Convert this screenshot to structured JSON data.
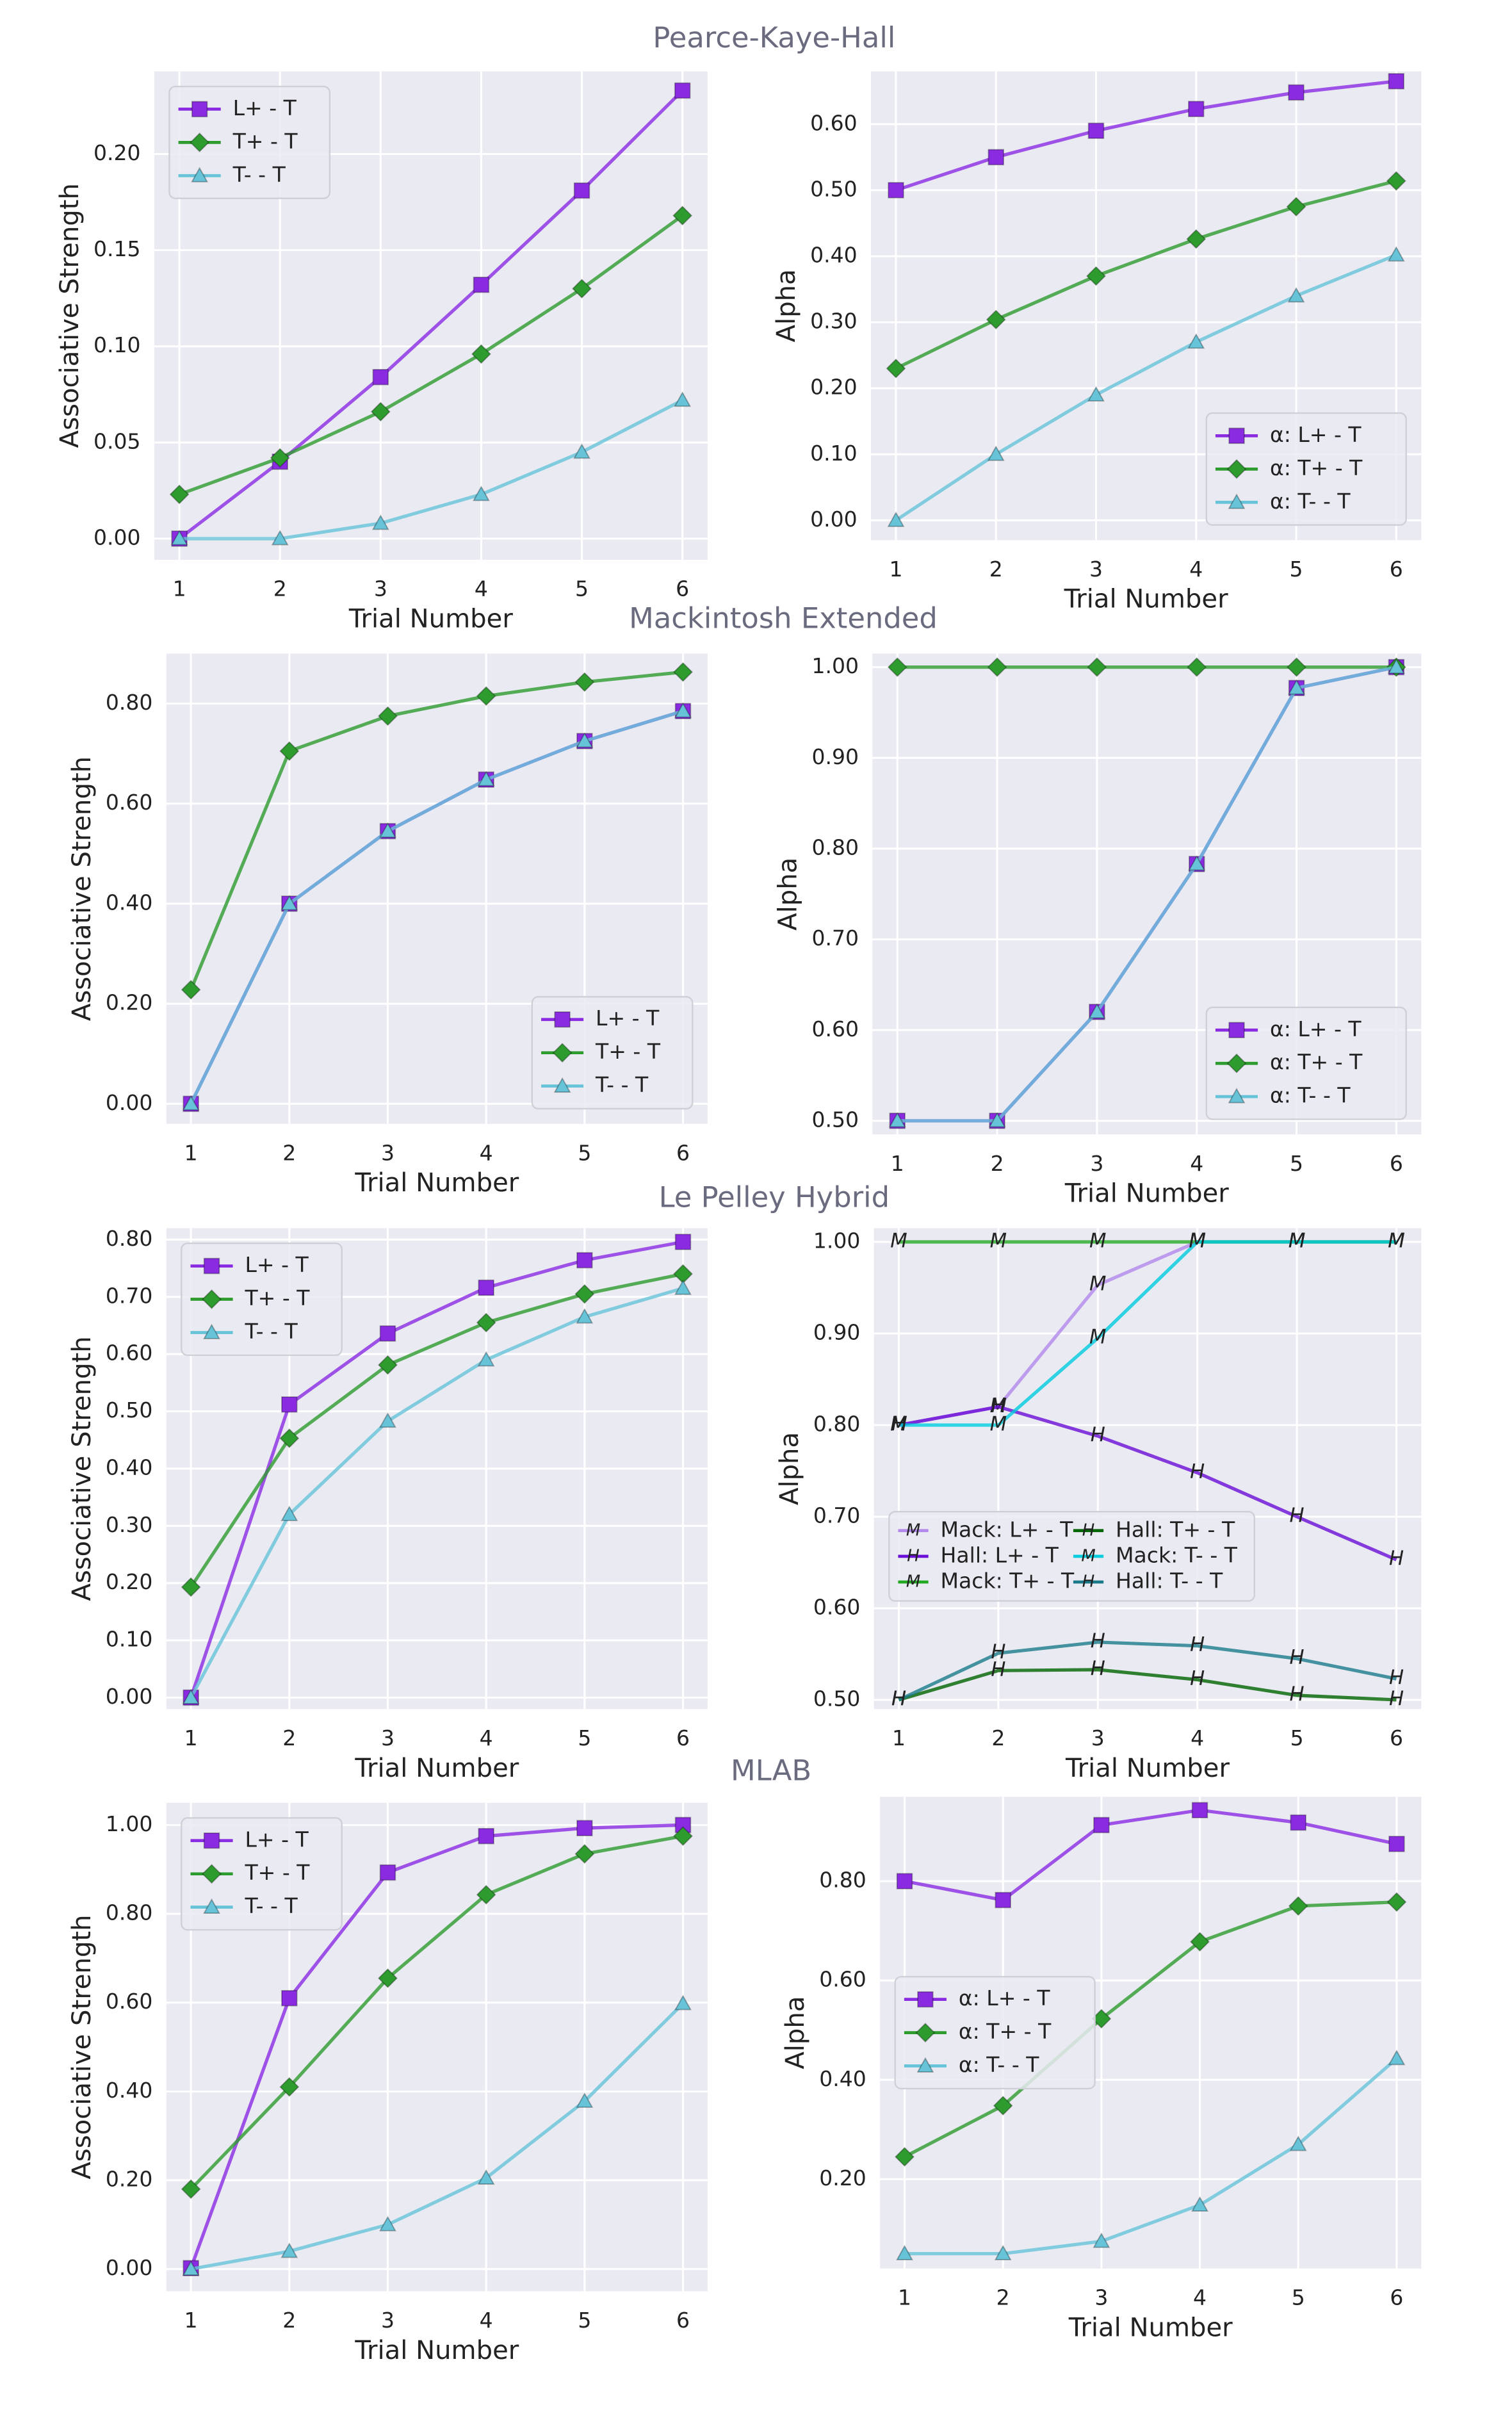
{
  "section_titles": [
    "Pearce-Kaye-Hall",
    "Mackintosh Extended",
    "Le Pelley Hybrid",
    "MLAB"
  ],
  "chart_data": [
    {
      "type": "line",
      "xlabel": "Trial Number",
      "ylabel": "Associative Strength",
      "x": [
        1,
        2,
        3,
        4,
        5,
        6
      ],
      "xlim": [
        0.75,
        6.25
      ],
      "xticks": [
        1,
        2,
        3,
        4,
        5,
        6
      ],
      "ylim": [
        -0.011,
        0.243
      ],
      "yticks": [
        {
          "value": 0,
          "label": "0.00"
        },
        {
          "value": 0.05,
          "label": "0.05"
        },
        {
          "value": 0.1,
          "label": "0.10"
        },
        {
          "value": 0.15,
          "label": "0.15"
        },
        {
          "value": 0.2,
          "label": "0.20"
        }
      ],
      "grid": true,
      "legend": "upper left",
      "series": [
        {
          "name": "L+ - T",
          "color": "#8a2be2",
          "marker": "s",
          "values": [
            0,
            0.04,
            0.084,
            0.132,
            0.181,
            0.233
          ]
        },
        {
          "name": "T+ - T",
          "color": "#2e9b2e",
          "marker": "D",
          "values": [
            0.023,
            0.042,
            0.066,
            0.096,
            0.13,
            0.168
          ]
        },
        {
          "name": "T- - T",
          "color": "#66c3d8",
          "marker": "^",
          "values": [
            0,
            0,
            0.008,
            0.023,
            0.045,
            0.072
          ]
        }
      ]
    },
    {
      "type": "line",
      "xlabel": "Trial Number",
      "ylabel": "Alpha",
      "x": [
        1,
        2,
        3,
        4,
        5,
        6
      ],
      "xlim": [
        0.75,
        6.25
      ],
      "xticks": [
        1,
        2,
        3,
        4,
        5,
        6
      ],
      "ylim": [
        -0.03,
        0.68
      ],
      "yticks": [
        {
          "value": 0,
          "label": "0.00"
        },
        {
          "value": 0.1,
          "label": "0.10"
        },
        {
          "value": 0.2,
          "label": "0.20"
        },
        {
          "value": 0.3,
          "label": "0.30"
        },
        {
          "value": 0.4,
          "label": "0.40"
        },
        {
          "value": 0.5,
          "label": "0.50"
        },
        {
          "value": 0.6,
          "label": "0.60"
        }
      ],
      "grid": true,
      "legend": "lower right",
      "series": [
        {
          "name": "α: L+ - T",
          "color": "#8a2be2",
          "marker": "s",
          "values": [
            0.5,
            0.55,
            0.59,
            0.623,
            0.648,
            0.665
          ]
        },
        {
          "name": "α: T+ - T",
          "color": "#2e9b2e",
          "marker": "D",
          "values": [
            0.23,
            0.304,
            0.37,
            0.426,
            0.475,
            0.514
          ]
        },
        {
          "name": "α: T- - T",
          "color": "#66c3d8",
          "marker": "^",
          "values": [
            0,
            0.1,
            0.19,
            0.27,
            0.34,
            0.402
          ]
        }
      ]
    },
    {
      "type": "line",
      "xlabel": "Trial Number",
      "ylabel": "Associative Strength",
      "x": [
        1,
        2,
        3,
        4,
        5,
        6
      ],
      "xlim": [
        0.75,
        6.25
      ],
      "xticks": [
        1,
        2,
        3,
        4,
        5,
        6
      ],
      "ylim": [
        -0.04,
        0.9
      ],
      "yticks": [
        {
          "value": 0,
          "label": "0.00"
        },
        {
          "value": 0.2,
          "label": "0.20"
        },
        {
          "value": 0.4,
          "label": "0.40"
        },
        {
          "value": 0.6,
          "label": "0.60"
        },
        {
          "value": 0.8,
          "label": "0.80"
        }
      ],
      "grid": true,
      "legend": "lower right",
      "series": [
        {
          "name": "L+ - T",
          "color": "#8a2be2",
          "marker": "s",
          "values": [
            0,
            0.4,
            0.545,
            0.648,
            0.725,
            0.785
          ]
        },
        {
          "name": "T+ - T",
          "color": "#2e9b2e",
          "marker": "D",
          "values": [
            0.228,
            0.705,
            0.775,
            0.815,
            0.843,
            0.863
          ]
        },
        {
          "name": "T- - T",
          "color": "#66c3d8",
          "marker": "^",
          "values": [
            0,
            0.4,
            0.545,
            0.648,
            0.725,
            0.785
          ]
        }
      ]
    },
    {
      "type": "line",
      "xlabel": "Trial Number",
      "ylabel": "Alpha",
      "x": [
        1,
        2,
        3,
        4,
        5,
        6
      ],
      "xlim": [
        0.75,
        6.25
      ],
      "xticks": [
        1,
        2,
        3,
        4,
        5,
        6
      ],
      "ylim": [
        0.485,
        1.015
      ],
      "yticks": [
        {
          "value": 0.5,
          "label": "0.50"
        },
        {
          "value": 0.6,
          "label": "0.60"
        },
        {
          "value": 0.7,
          "label": "0.70"
        },
        {
          "value": 0.8,
          "label": "0.80"
        },
        {
          "value": 0.9,
          "label": "0.90"
        },
        {
          "value": 1,
          "label": "1.00"
        }
      ],
      "grid": true,
      "legend": "lower right",
      "series": [
        {
          "name": "α: L+ - T",
          "color": "#8a2be2",
          "marker": "s",
          "values": [
            0.5,
            0.5,
            0.62,
            0.783,
            0.977,
            1
          ]
        },
        {
          "name": "α: T+ - T",
          "color": "#2e9b2e",
          "marker": "D",
          "values": [
            1,
            1,
            1,
            1,
            1,
            1
          ]
        },
        {
          "name": "α: T- - T",
          "color": "#66c3d8",
          "marker": "^",
          "values": [
            0.5,
            0.5,
            0.62,
            0.783,
            0.977,
            1
          ]
        }
      ]
    },
    {
      "type": "line",
      "xlabel": "Trial Number",
      "ylabel": "Associative Strength",
      "x": [
        1,
        2,
        3,
        4,
        5,
        6
      ],
      "xlim": [
        0.75,
        6.25
      ],
      "xticks": [
        1,
        2,
        3,
        4,
        5,
        6
      ],
      "ylim": [
        -0.02,
        0.82
      ],
      "yticks": [
        {
          "value": 0,
          "label": "0.00"
        },
        {
          "value": 0.1,
          "label": "0.10"
        },
        {
          "value": 0.2,
          "label": "0.20"
        },
        {
          "value": 0.3,
          "label": "0.30"
        },
        {
          "value": 0.4,
          "label": "0.40"
        },
        {
          "value": 0.5,
          "label": "0.50"
        },
        {
          "value": 0.6,
          "label": "0.60"
        },
        {
          "value": 0.7,
          "label": "0.70"
        },
        {
          "value": 0.8,
          "label": "0.80"
        }
      ],
      "grid": true,
      "legend": "upper left",
      "series": [
        {
          "name": "L+ - T",
          "color": "#8a2be2",
          "marker": "s",
          "values": [
            0,
            0.512,
            0.636,
            0.716,
            0.764,
            0.796
          ]
        },
        {
          "name": "T+ - T",
          "color": "#2e9b2e",
          "marker": "D",
          "values": [
            0.193,
            0.453,
            0.581,
            0.655,
            0.705,
            0.74
          ]
        },
        {
          "name": "T- - T",
          "color": "#66c3d8",
          "marker": "^",
          "values": [
            0,
            0.32,
            0.483,
            0.59,
            0.665,
            0.715
          ]
        }
      ]
    },
    {
      "type": "line",
      "xlabel": "Trial Number",
      "ylabel": "Alpha",
      "x": [
        1,
        2,
        3,
        4,
        5,
        6
      ],
      "xlim": [
        0.75,
        6.25
      ],
      "xticks": [
        1,
        2,
        3,
        4,
        5,
        6
      ],
      "ylim": [
        0.49,
        1.015
      ],
      "yticks": [
        {
          "value": 0.5,
          "label": "0.50"
        },
        {
          "value": 0.6,
          "label": "0.60"
        },
        {
          "value": 0.7,
          "label": "0.70"
        },
        {
          "value": 0.8,
          "label": "0.80"
        },
        {
          "value": 0.9,
          "label": "0.90"
        },
        {
          "value": 1,
          "label": "1.00"
        }
      ],
      "grid": true,
      "legend": "center left",
      "legend_columns": 2,
      "series": [
        {
          "name": "Mack: L+ - T",
          "color": "#b388eb",
          "marker": "M",
          "values": [
            0.8,
            0.82,
            0.953,
            1,
            1,
            1
          ]
        },
        {
          "name": "Hall: L+ - T",
          "color": "#6a0dd6",
          "marker": "H",
          "values": [
            0.8,
            0.82,
            0.788,
            0.748,
            0.7,
            0.653
          ]
        },
        {
          "name": "Mack: T+ - T",
          "color": "#22a822",
          "marker": "M",
          "values": [
            1,
            1,
            1,
            1,
            1,
            1
          ]
        },
        {
          "name": "Hall: T+ - T",
          "color": "#006400",
          "marker": "H",
          "values": [
            0.5,
            0.532,
            0.533,
            0.522,
            0.505,
            0.5
          ]
        },
        {
          "name": "Mack: T- - T",
          "color": "#00ccdd",
          "marker": "M",
          "values": [
            0.8,
            0.8,
            0.895,
            1,
            1,
            1
          ]
        },
        {
          "name": "Hall: T- - T",
          "color": "#1a7a8a",
          "marker": "H",
          "values": [
            0.5,
            0.551,
            0.563,
            0.559,
            0.545,
            0.523
          ]
        }
      ]
    },
    {
      "type": "line",
      "xlabel": "Trial Number",
      "ylabel": "Associative Strength",
      "x": [
        1,
        2,
        3,
        4,
        5,
        6
      ],
      "xlim": [
        0.75,
        6.25
      ],
      "xticks": [
        1,
        2,
        3,
        4,
        5,
        6
      ],
      "ylim": [
        -0.05,
        1.05
      ],
      "yticks": [
        {
          "value": 0,
          "label": "0.00"
        },
        {
          "value": 0.2,
          "label": "0.20"
        },
        {
          "value": 0.4,
          "label": "0.40"
        },
        {
          "value": 0.6,
          "label": "0.60"
        },
        {
          "value": 0.8,
          "label": "0.80"
        },
        {
          "value": 1,
          "label": "1.00"
        }
      ],
      "grid": true,
      "legend": "upper left",
      "series": [
        {
          "name": "L+ - T",
          "color": "#8a2be2",
          "marker": "s",
          "values": [
            0.002,
            0.61,
            0.893,
            0.975,
            0.993,
            1
          ]
        },
        {
          "name": "T+ - T",
          "color": "#2e9b2e",
          "marker": "D",
          "values": [
            0.18,
            0.41,
            0.655,
            0.843,
            0.935,
            0.975
          ]
        },
        {
          "name": "T- - T",
          "color": "#66c3d8",
          "marker": "^",
          "values": [
            0,
            0.04,
            0.1,
            0.205,
            0.378,
            0.598
          ]
        }
      ]
    },
    {
      "type": "line",
      "xlabel": "Trial Number",
      "ylabel": "Alpha",
      "x": [
        1,
        2,
        3,
        4,
        5,
        6
      ],
      "xlim": [
        0.75,
        6.25
      ],
      "xticks": [
        1,
        2,
        3,
        4,
        5,
        6
      ],
      "ylim": [
        0.02,
        0.97
      ],
      "yticks": [
        {
          "value": 0.2,
          "label": "0.20"
        },
        {
          "value": 0.4,
          "label": "0.40"
        },
        {
          "value": 0.6,
          "label": "0.60"
        },
        {
          "value": 0.8,
          "label": "0.80"
        }
      ],
      "grid": true,
      "legend": "center left",
      "series": [
        {
          "name": "α: L+ - T",
          "color": "#8a2be2",
          "marker": "s",
          "values": [
            0.8,
            0.762,
            0.913,
            0.943,
            0.918,
            0.875
          ]
        },
        {
          "name": "α: T+ - T",
          "color": "#2e9b2e",
          "marker": "D",
          "values": [
            0.245,
            0.348,
            0.523,
            0.678,
            0.75,
            0.758
          ]
        },
        {
          "name": "α: T- - T",
          "color": "#66c3d8",
          "marker": "^",
          "values": [
            0.05,
            0.05,
            0.075,
            0.148,
            0.27,
            0.443
          ]
        }
      ]
    }
  ]
}
